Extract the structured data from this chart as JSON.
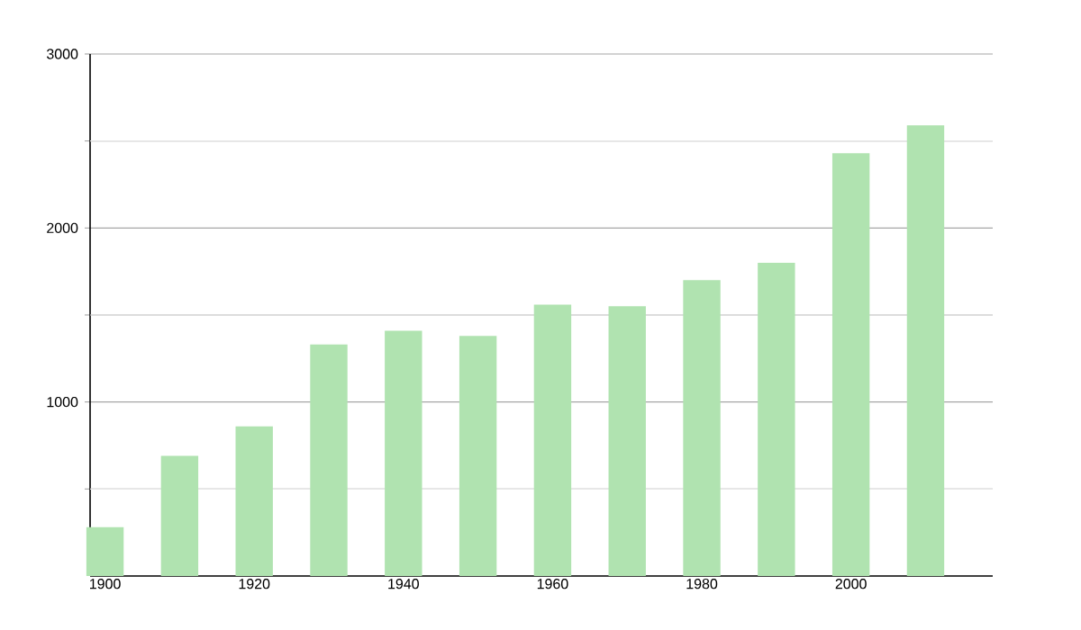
{
  "chart_data": {
    "type": "bar",
    "x": [
      1900,
      1910,
      1920,
      1930,
      1940,
      1950,
      1960,
      1970,
      1980,
      1990,
      2000,
      2010
    ],
    "values": [
      280,
      690,
      860,
      1330,
      1410,
      1380,
      1560,
      1550,
      1700,
      1800,
      2430,
      2590
    ],
    "color": "#b0e3b0",
    "xlim": [
      1898,
      2019
    ],
    "xticks": [
      1900,
      1920,
      1940,
      1960,
      1980,
      2000
    ],
    "ylim": [
      0,
      3000
    ],
    "yticks": [
      {
        "value": 500,
        "label": null
      },
      1000,
      {
        "value": 1500,
        "label": null
      },
      2000,
      {
        "value": 2500,
        "label": null
      },
      3000
    ],
    "grid": "y"
  }
}
